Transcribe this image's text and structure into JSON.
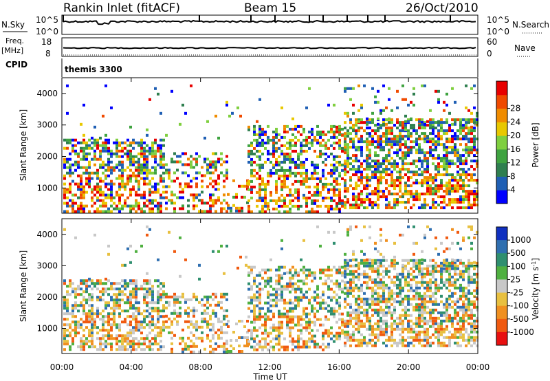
{
  "header": {
    "station": "Rankin Inlet (fitACF)",
    "beam": "Beam 15",
    "date": "26/Oct/2010"
  },
  "noise_panel": {
    "left_label": "N.Sky",
    "right_label": "N.Search",
    "left_ticks": [
      "10^5",
      "10^0"
    ],
    "right_ticks": [
      "10^5",
      "10^0"
    ]
  },
  "freq_panel": {
    "left_label_1": "Freq.",
    "left_label_2": "[MHz]",
    "right_label": "Nave",
    "left_ticks": [
      "18",
      "8"
    ],
    "right_ticks": [
      "60",
      "0"
    ]
  },
  "cpid_panel": {
    "label": "CPID",
    "value": "themis 3300"
  },
  "chart_data": [
    {
      "type": "heatmap",
      "name": "power",
      "ylabel": "Slant Range [km]",
      "ylim": [
        200,
        4500
      ],
      "xlim": [
        0,
        24
      ],
      "yticks": [
        1000,
        2000,
        3000,
        4000
      ],
      "colorbar": {
        "label": "Power [dB]",
        "ticks": [
          "4",
          "8",
          "12",
          "16",
          "20",
          "24",
          "28"
        ],
        "colors": [
          "#0000ff",
          "#1f5fb4",
          "#2f7f4f",
          "#3fa340",
          "#7fcf3f",
          "#e8c800",
          "#f08c00",
          "#f04a00",
          "#e80000"
        ]
      }
    },
    {
      "type": "heatmap",
      "name": "velocity",
      "ylabel": "Slant Range [km]",
      "ylim": [
        200,
        4500
      ],
      "xlim": [
        0,
        24
      ],
      "yticks": [
        1000,
        2000,
        3000,
        4000
      ],
      "colorbar": {
        "label": "Velocity [m s^-1]",
        "ticks": [
          "1000",
          "500",
          "100",
          "25",
          "-25",
          "-100",
          "-500",
          "-1000"
        ],
        "colors": [
          "#1030c0",
          "#2f6fb0",
          "#2f8f6f",
          "#4fb040",
          "#c8c8c8",
          "#e8c040",
          "#f09020",
          "#f05a10",
          "#e81010"
        ]
      }
    }
  ],
  "x_axis": {
    "label": "Time UT",
    "ticks": [
      "00:00",
      "04:00",
      "08:00",
      "12:00",
      "16:00",
      "20:00",
      "00:00"
    ]
  }
}
